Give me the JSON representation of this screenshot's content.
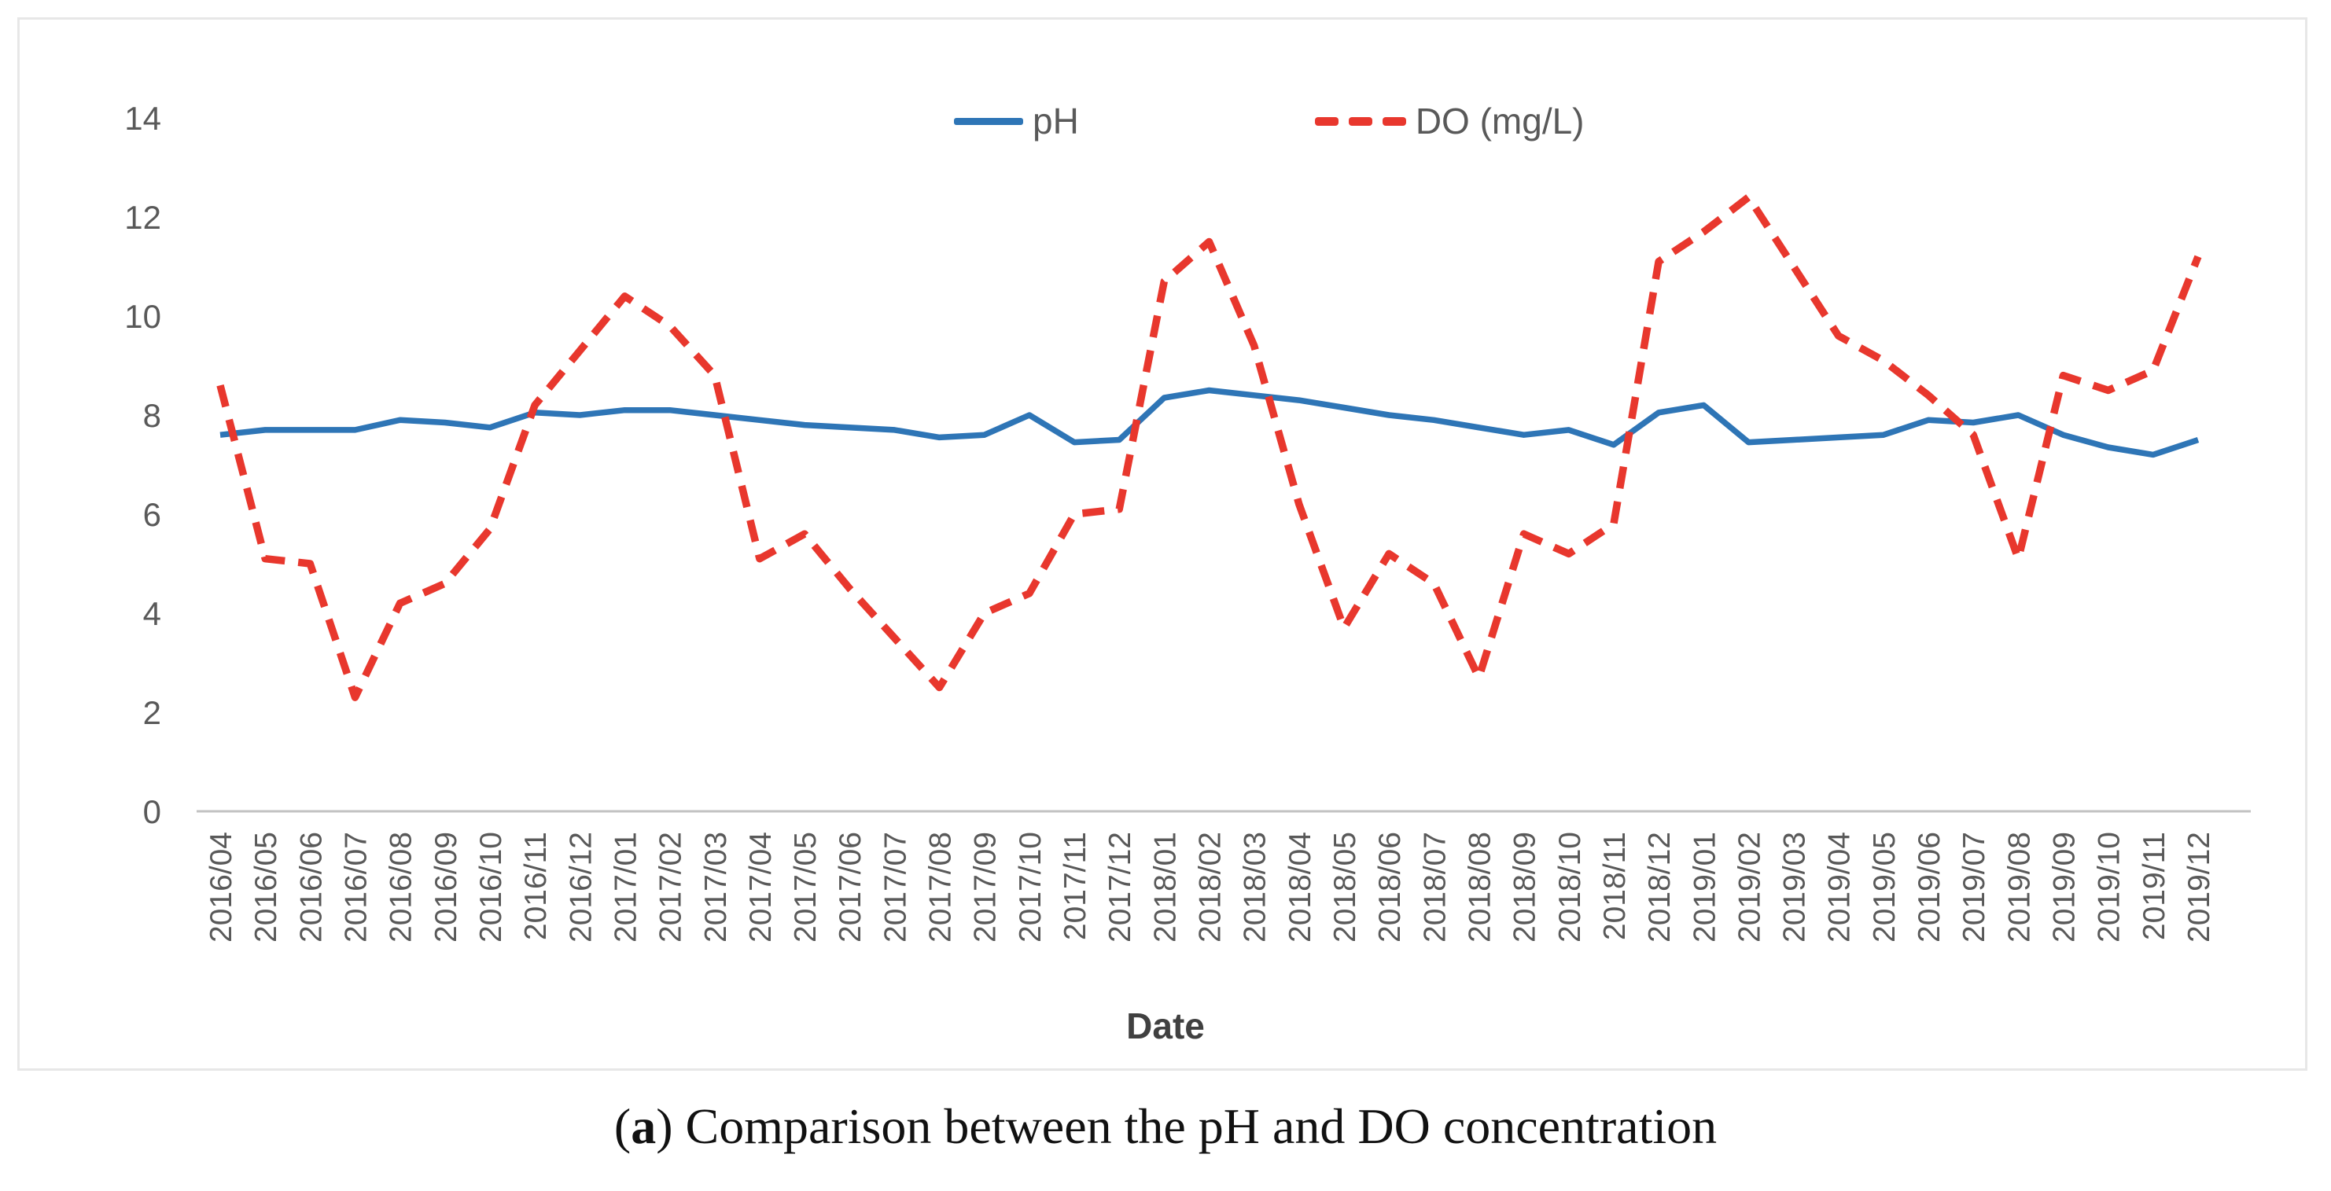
{
  "legend": {
    "items": [
      {
        "label": "pH",
        "series": "ph"
      },
      {
        "label": "DO (mg/L)",
        "series": "do"
      }
    ]
  },
  "axes": {
    "y_ticks": [
      "14",
      "12",
      "10",
      "8",
      "6",
      "4",
      "2",
      "0"
    ],
    "x_axis_title": "Date"
  },
  "caption": {
    "open_paren": "(",
    "bold_letter": "a",
    "close_paren": ") ",
    "text": "Comparison between the pH and DO concentration"
  },
  "colors": {
    "ph_line": "#2E75B6",
    "do_line": "#E8372D",
    "tick_text": "#595959",
    "axis_line": "#C2C2C2",
    "date_label": "#404040"
  },
  "chart_data": {
    "type": "line",
    "title": "",
    "xlabel": "Date",
    "ylabel": "",
    "ylim": [
      0,
      14
    ],
    "grid": false,
    "legend_position": "top-center",
    "x": [
      "2016/04",
      "2016/05",
      "2016/06",
      "2016/07",
      "2016/08",
      "2016/09",
      "2016/10",
      "2016/11",
      "2016/12",
      "2017/01",
      "2017/02",
      "2017/03",
      "2017/04",
      "2017/05",
      "2017/06",
      "2017/07",
      "2017/08",
      "2017/09",
      "2017/10",
      "2017/11",
      "2017/12",
      "2018/01",
      "2018/02",
      "2018/03",
      "2018/04",
      "2018/05",
      "2018/06",
      "2018/07",
      "2018/08",
      "2018/09",
      "2018/10",
      "2018/11",
      "2018/12",
      "2019/01",
      "2019/02",
      "2019/03",
      "2019/04",
      "2019/05",
      "2019/06",
      "2019/07",
      "2019/08",
      "2019/09",
      "2019/10",
      "2019/11",
      "2019/12"
    ],
    "series": [
      {
        "name": "pH",
        "style": "solid",
        "color": "#2E75B6",
        "values": [
          7.6,
          7.7,
          7.7,
          7.7,
          7.9,
          7.85,
          7.75,
          8.05,
          8.0,
          8.1,
          8.1,
          8.0,
          7.9,
          7.8,
          7.75,
          7.7,
          7.55,
          7.6,
          8.0,
          7.45,
          7.5,
          8.35,
          8.5,
          8.4,
          8.3,
          8.15,
          8.0,
          7.9,
          7.75,
          7.6,
          7.7,
          7.4,
          8.05,
          8.2,
          7.45,
          7.5,
          7.55,
          7.6,
          7.9,
          7.85,
          8.0,
          7.6,
          7.35,
          7.2,
          7.5
        ]
      },
      {
        "name": "DO (mg/L)",
        "style": "dashed",
        "color": "#E8372D",
        "values": [
          8.6,
          5.1,
          5.0,
          2.3,
          4.2,
          4.6,
          5.7,
          8.2,
          9.3,
          10.4,
          9.8,
          8.8,
          5.1,
          5.6,
          4.5,
          3.5,
          2.5,
          4.0,
          4.4,
          6.0,
          6.1,
          10.7,
          11.5,
          9.4,
          6.2,
          3.7,
          5.2,
          4.6,
          2.7,
          5.6,
          5.2,
          5.8,
          11.1,
          11.7,
          12.4,
          11.0,
          9.6,
          9.1,
          8.4,
          7.6,
          5.1,
          8.8,
          8.5,
          8.9,
          11.2
        ]
      }
    ]
  }
}
